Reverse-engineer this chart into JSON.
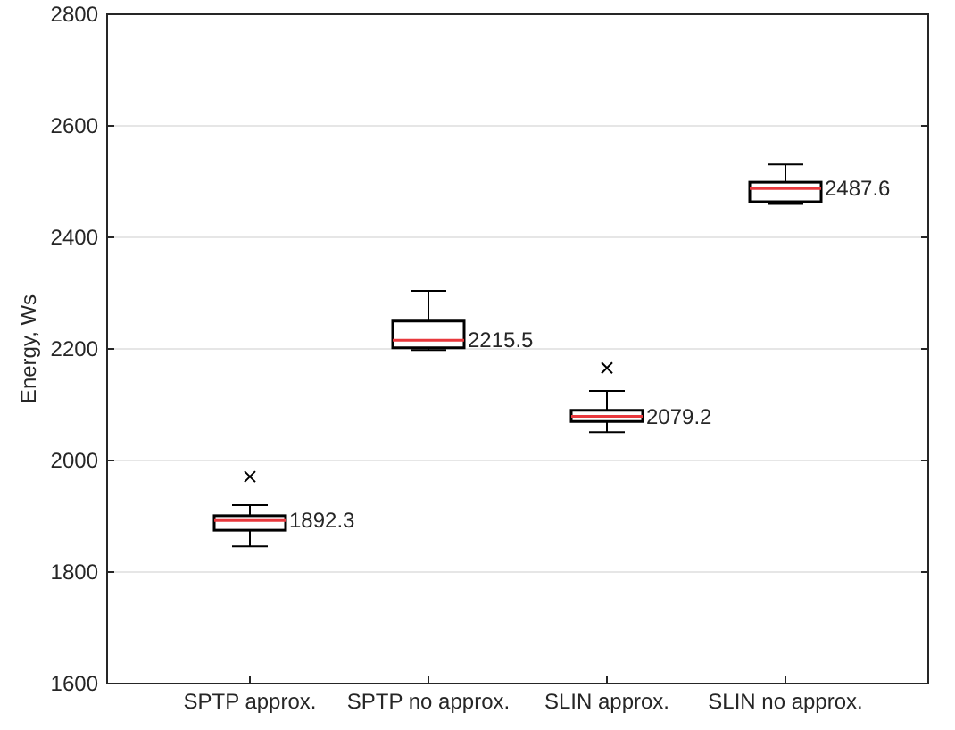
{
  "chart_data": {
    "type": "box",
    "ylabel": "Energy, Ws",
    "categories": [
      "SPTP approx.",
      "SPTP no approx.",
      "SLIN approx.",
      "SLIN no approx."
    ],
    "boxes": [
      {
        "low": 1846,
        "q1": 1875,
        "median": 1892.3,
        "q3": 1901,
        "high": 1920,
        "outliers": [
          1971
        ]
      },
      {
        "low": 2198,
        "q1": 2202,
        "median": 2215.5,
        "q3": 2250,
        "high": 2304
      },
      {
        "low": 2051,
        "q1": 2070,
        "median": 2079.2,
        "q3": 2090,
        "high": 2125,
        "outliers": [
          2166
        ]
      },
      {
        "low": 2460,
        "q1": 2464,
        "median": 2487.6,
        "q3": 2499,
        "high": 2531
      }
    ],
    "color": "#000000",
    "annotations": [
      {
        "text": "1892.3",
        "x": "SPTP approx.",
        "y": 1892.3
      },
      {
        "text": "2215.5",
        "x": "SPTP no approx.",
        "y": 2215.5
      },
      {
        "text": "2079.2",
        "x": "SLIN approx.",
        "y": 2079.2
      },
      {
        "text": "2487.6",
        "x": "SLIN no approx.",
        "y": 2487.6
      }
    ],
    "ylim": [
      1600,
      2800
    ],
    "yticks": [
      1600,
      1800,
      2000,
      2200,
      2400,
      2600,
      2800
    ],
    "grid": "y"
  }
}
